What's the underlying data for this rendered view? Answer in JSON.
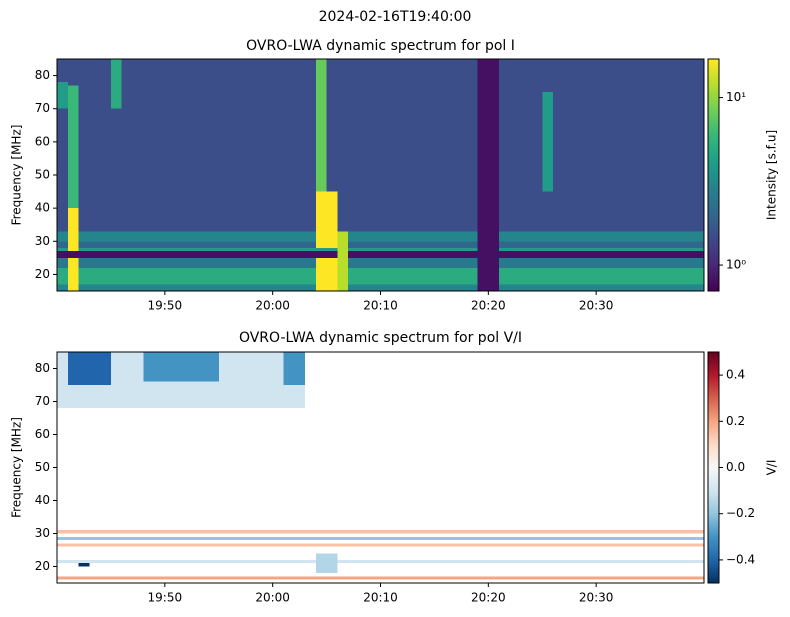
{
  "title": "2024-02-16T19:40:00",
  "chart_data": [
    {
      "type": "heatmap",
      "title": "OVRO-LWA dynamic spectrum for pol I",
      "y_label": "Frequency [MHz]",
      "colorbar_label": "Intensity [s.f.u]",
      "colormap": "viridis",
      "log_color": true,
      "clim": [
        0.7,
        17
      ],
      "cticks": [
        {
          "value": 1,
          "label": "10⁰"
        },
        {
          "value": 10,
          "label": "10¹"
        }
      ],
      "xlim": [
        "19:40",
        "20:40"
      ],
      "xticks": [
        "19:50",
        "20:00",
        "20:10",
        "20:20",
        "20:30"
      ],
      "ylim": [
        15,
        85
      ],
      "yticks": [
        20,
        30,
        40,
        50,
        60,
        70,
        80
      ],
      "cells": [
        {
          "t": [
            "19:40",
            "20:40"
          ],
          "f": [
            33,
            85
          ],
          "value": 1.5
        },
        {
          "t": [
            "19:40",
            "20:40"
          ],
          "f": [
            30,
            33
          ],
          "value": 3
        },
        {
          "t": [
            "19:40",
            "20:40"
          ],
          "f": [
            28,
            30
          ],
          "value": 2
        },
        {
          "t": [
            "19:40",
            "20:40"
          ],
          "f": [
            27,
            28
          ],
          "value": 4
        },
        {
          "t": [
            "19:40",
            "20:40"
          ],
          "f": [
            25,
            27
          ],
          "value": 0.8
        },
        {
          "t": [
            "19:40",
            "20:40"
          ],
          "f": [
            22,
            25
          ],
          "value": 2.5
        },
        {
          "t": [
            "19:40",
            "20:40"
          ],
          "f": [
            17,
            22
          ],
          "value": 5
        },
        {
          "t": [
            "19:40",
            "20:40"
          ],
          "f": [
            15,
            17
          ],
          "value": 3
        },
        {
          "t": [
            "20:19",
            "20:21"
          ],
          "f": [
            15,
            85
          ],
          "value": 0.8
        },
        {
          "t": [
            "19:40",
            "19:41"
          ],
          "f": [
            70,
            78
          ],
          "value": 4
        },
        {
          "t": [
            "19:41",
            "19:42"
          ],
          "f": [
            40,
            77
          ],
          "value": 6
        },
        {
          "t": [
            "19:41",
            "19:42"
          ],
          "f": [
            27,
            40
          ],
          "value": 17
        },
        {
          "t": [
            "19:41",
            "19:42"
          ],
          "f": [
            15,
            25
          ],
          "value": 17
        },
        {
          "t": [
            "19:45",
            "19:46"
          ],
          "f": [
            70,
            85
          ],
          "value": 5
        },
        {
          "t": [
            "20:04",
            "20:05"
          ],
          "f": [
            45,
            85
          ],
          "value": 8
        },
        {
          "t": [
            "20:04",
            "20:06"
          ],
          "f": [
            28,
            45
          ],
          "value": 17
        },
        {
          "t": [
            "20:04",
            "20:06"
          ],
          "f": [
            15,
            25
          ],
          "value": 17
        },
        {
          "t": [
            "20:06",
            "20:07"
          ],
          "f": [
            15,
            33
          ],
          "value": 12
        },
        {
          "t": [
            "20:25",
            "20:26"
          ],
          "f": [
            45,
            75
          ],
          "value": 4
        }
      ]
    },
    {
      "type": "heatmap",
      "title": "OVRO-LWA dynamic spectrum for pol V/I",
      "y_label": "Frequency [MHz]",
      "colorbar_label": "V/I",
      "colormap": "RdBu_r",
      "log_color": false,
      "clim": [
        -0.5,
        0.5
      ],
      "cticks": [
        {
          "value": -0.4,
          "label": "−0.4"
        },
        {
          "value": -0.2,
          "label": "−0.2"
        },
        {
          "value": 0,
          "label": "0.0"
        },
        0.2,
        0.4
      ],
      "xlim": [
        "19:40",
        "20:40"
      ],
      "xticks": [
        "19:50",
        "20:00",
        "20:10",
        "20:20",
        "20:30"
      ],
      "ylim": [
        15,
        85
      ],
      "yticks": [
        20,
        30,
        40,
        50,
        60,
        70,
        80
      ],
      "cells": [
        {
          "t": [
            "19:40",
            "20:03"
          ],
          "f": [
            68,
            85
          ],
          "value": -0.1
        },
        {
          "t": [
            "19:41",
            "19:45"
          ],
          "f": [
            75,
            85
          ],
          "value": -0.4
        },
        {
          "t": [
            "19:48",
            "19:55"
          ],
          "f": [
            76,
            85
          ],
          "value": -0.3
        },
        {
          "t": [
            "20:01",
            "20:03"
          ],
          "f": [
            75,
            85
          ],
          "value": -0.3
        },
        {
          "t": [
            "19:40",
            "20:40"
          ],
          "f": [
            30,
            31
          ],
          "value": 0.15
        },
        {
          "t": [
            "19:40",
            "20:40"
          ],
          "f": [
            28,
            29
          ],
          "value": -0.2
        },
        {
          "t": [
            "19:40",
            "20:40"
          ],
          "f": [
            26,
            27
          ],
          "value": 0.15
        },
        {
          "t": [
            "19:40",
            "20:40"
          ],
          "f": [
            21,
            22
          ],
          "value": -0.1
        },
        {
          "t": [
            "19:40",
            "20:40"
          ],
          "f": [
            16,
            17
          ],
          "value": 0.2
        },
        {
          "t": [
            "20:04",
            "20:06"
          ],
          "f": [
            18,
            24
          ],
          "value": -0.15
        },
        {
          "t": [
            "19:42",
            "19:43"
          ],
          "f": [
            20,
            21
          ],
          "value": -0.5
        }
      ]
    }
  ]
}
